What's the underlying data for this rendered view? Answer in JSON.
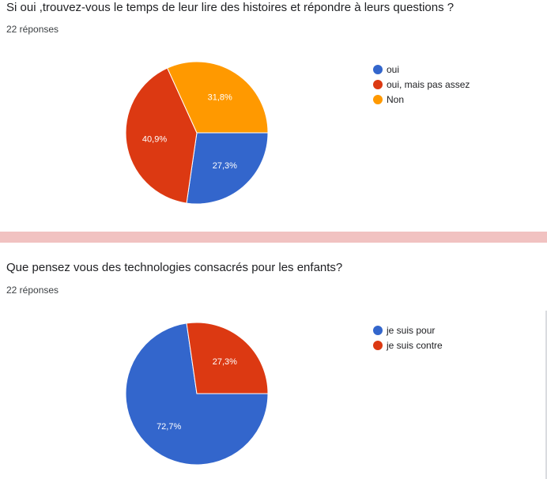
{
  "charts": [
    {
      "title": "Si oui ,trouvez-vous le temps de leur lire des histoires et répondre à leurs questions ?",
      "responses": "22 réponses"
    },
    {
      "title": "Que pensez vous des technologies consacrés pour les enfants?",
      "responses": "22 réponses"
    }
  ],
  "chart_data": [
    {
      "type": "pie",
      "categories": [
        "oui",
        "oui, mais pas assez",
        "Non"
      ],
      "values": [
        27.3,
        40.9,
        31.8
      ],
      "value_labels": [
        "27,3%",
        "40,9%",
        "31,8%"
      ],
      "colors": [
        "#3366cc",
        "#dc3912",
        "#ff9900"
      ],
      "legend_position": "right"
    },
    {
      "type": "pie",
      "categories": [
        "je suis pour",
        "je suis contre"
      ],
      "values": [
        72.7,
        27.3
      ],
      "value_labels": [
        "72,7%",
        "27,3%"
      ],
      "colors": [
        "#3366cc",
        "#dc3912"
      ],
      "legend_position": "right"
    }
  ]
}
